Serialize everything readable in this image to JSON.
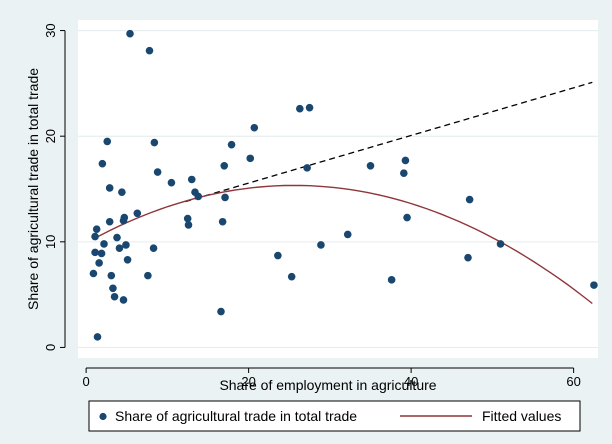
{
  "chart_data": {
    "type": "scatter",
    "title": "",
    "xlabel": "Share of employment in agriculture",
    "ylabel": "Share of agricultural trade in total trade",
    "xlim": [
      -1,
      63
    ],
    "ylim": [
      -1,
      31
    ],
    "xticks": [
      0,
      20,
      40,
      60
    ],
    "yticks": [
      0,
      10,
      20,
      30
    ],
    "grid": "horizontal",
    "legend_position": "bottom",
    "colors": {
      "points": "#1a476f",
      "fitted": "#90353b",
      "dashed": "#000000",
      "plot_bg": "#ffffff",
      "page_bg": "#eaf2f3"
    },
    "series": [
      {
        "name": "Share of agricultural trade in total trade",
        "kind": "scatter",
        "points": [
          [
            0.9,
            7.0
          ],
          [
            1.1,
            9.0
          ],
          [
            1.1,
            10.5
          ],
          [
            1.3,
            11.2
          ],
          [
            1.4,
            1.0
          ],
          [
            1.6,
            8.0
          ],
          [
            1.9,
            8.9
          ],
          [
            2.0,
            17.4
          ],
          [
            2.2,
            9.8
          ],
          [
            2.6,
            19.5
          ],
          [
            2.9,
            15.1
          ],
          [
            2.9,
            11.9
          ],
          [
            3.1,
            6.8
          ],
          [
            3.3,
            5.6
          ],
          [
            3.5,
            4.8
          ],
          [
            3.8,
            10.4
          ],
          [
            4.1,
            9.4
          ],
          [
            4.4,
            14.7
          ],
          [
            4.6,
            12.0
          ],
          [
            4.6,
            4.5
          ],
          [
            4.7,
            12.3
          ],
          [
            4.9,
            9.7
          ],
          [
            5.1,
            8.3
          ],
          [
            5.4,
            29.7
          ],
          [
            6.3,
            12.7
          ],
          [
            7.6,
            6.8
          ],
          [
            7.8,
            28.1
          ],
          [
            8.3,
            9.4
          ],
          [
            8.4,
            19.4
          ],
          [
            8.8,
            16.6
          ],
          [
            10.5,
            15.6
          ],
          [
            12.5,
            12.2
          ],
          [
            12.6,
            11.6
          ],
          [
            13.0,
            15.9
          ],
          [
            13.4,
            14.7
          ],
          [
            13.8,
            14.3
          ],
          [
            16.6,
            3.4
          ],
          [
            16.8,
            11.9
          ],
          [
            17.0,
            17.2
          ],
          [
            17.1,
            14.2
          ],
          [
            17.9,
            19.2
          ],
          [
            20.2,
            17.9
          ],
          [
            20.7,
            20.8
          ],
          [
            23.6,
            8.7
          ],
          [
            25.3,
            6.7
          ],
          [
            26.3,
            22.6
          ],
          [
            27.2,
            17.0
          ],
          [
            27.5,
            22.7
          ],
          [
            28.9,
            9.7
          ],
          [
            32.2,
            10.7
          ],
          [
            35.0,
            17.2
          ],
          [
            37.6,
            6.4
          ],
          [
            39.1,
            16.5
          ],
          [
            39.3,
            17.7
          ],
          [
            39.5,
            12.3
          ],
          [
            47.0,
            8.5
          ],
          [
            47.2,
            14.0
          ],
          [
            51.0,
            9.8
          ],
          [
            62.5,
            5.9
          ]
        ]
      },
      {
        "name": "Fitted values",
        "kind": "quadratic",
        "coefficients": [
          9.9,
          0.425,
          -0.0083
        ],
        "x_range": [
          0.9,
          62.3
        ]
      },
      {
        "name": "",
        "kind": "dashed-line",
        "x_range": [
          12.2,
          62.3
        ],
        "y_at_ends": [
          13.8,
          25.1
        ]
      }
    ]
  }
}
